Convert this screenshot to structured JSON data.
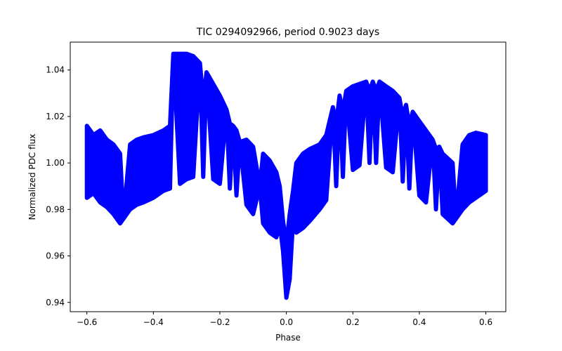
{
  "chart_data": {
    "type": "scatter",
    "title": "TIC 0294092966, period 0.9023 days",
    "xlabel": "Phase",
    "ylabel": "Normalized PDC flux",
    "xlim": [
      -0.65,
      0.66
    ],
    "ylim": [
      0.936,
      1.052
    ],
    "xticks": [
      -0.6,
      -0.4,
      -0.2,
      0.0,
      0.2,
      0.4,
      0.6
    ],
    "xtick_labels": [
      "−0.6",
      "−0.4",
      "−0.2",
      "0.0",
      "0.2",
      "0.4",
      "0.6"
    ],
    "yticks": [
      0.94,
      0.96,
      0.98,
      1.0,
      1.02,
      1.04
    ],
    "ytick_labels": [
      "0.94",
      "0.96",
      "0.98",
      "1.00",
      "1.02",
      "1.04"
    ],
    "marker_color": "#0000ff",
    "grid": false,
    "series": [
      {
        "points": [
          [
            -0.6,
            1.0
          ],
          [
            -0.6,
            1.012
          ],
          [
            -0.6,
            0.988
          ],
          [
            -0.6,
            1.016
          ],
          [
            -0.6,
            0.985
          ],
          [
            -0.58,
            1.001
          ],
          [
            -0.58,
            1.012
          ],
          [
            -0.58,
            0.987
          ],
          [
            -0.56,
            1.0
          ],
          [
            -0.56,
            1.014
          ],
          [
            -0.56,
            0.983
          ],
          [
            -0.54,
            0.999
          ],
          [
            -0.54,
            1.01
          ],
          [
            -0.54,
            0.981
          ],
          [
            -0.52,
            0.998
          ],
          [
            -0.52,
            1.008
          ],
          [
            -0.52,
            0.978
          ],
          [
            -0.5,
            0.995
          ],
          [
            -0.5,
            1.004
          ],
          [
            -0.5,
            0.974
          ],
          [
            -0.49,
            0.976
          ],
          [
            -0.47,
            0.997
          ],
          [
            -0.47,
            1.008
          ],
          [
            -0.47,
            0.98
          ],
          [
            -0.45,
            1.0
          ],
          [
            -0.45,
            1.01
          ],
          [
            -0.45,
            0.982
          ],
          [
            -0.43,
            1.001
          ],
          [
            -0.43,
            1.011
          ],
          [
            -0.43,
            0.983
          ],
          [
            -0.4,
            1.002
          ],
          [
            -0.4,
            1.012
          ],
          [
            -0.4,
            0.985
          ],
          [
            -0.37,
            1.004
          ],
          [
            -0.37,
            1.014
          ],
          [
            -0.37,
            0.988
          ],
          [
            -0.35,
            1.006
          ],
          [
            -0.35,
            1.016
          ],
          [
            -0.35,
            0.989
          ],
          [
            -0.32,
            1.008
          ],
          [
            -0.32,
            1.019
          ],
          [
            -0.32,
            0.991
          ],
          [
            -0.3,
            1.01
          ],
          [
            -0.3,
            1.021
          ],
          [
            -0.3,
            0.993
          ],
          [
            -0.28,
            1.011
          ],
          [
            -0.28,
            1.024
          ],
          [
            -0.28,
            0.994
          ],
          [
            -0.25,
            1.012
          ],
          [
            -0.25,
            1.027
          ],
          [
            -0.25,
            0.994
          ],
          [
            -0.22,
            1.011
          ],
          [
            -0.22,
            1.024
          ],
          [
            -0.22,
            0.993
          ],
          [
            -0.2,
            1.01
          ],
          [
            -0.2,
            1.021
          ],
          [
            -0.2,
            0.991
          ],
          [
            -0.17,
            1.007
          ],
          [
            -0.17,
            1.017
          ],
          [
            -0.17,
            0.989
          ],
          [
            -0.15,
            1.005
          ],
          [
            -0.15,
            1.014
          ],
          [
            -0.15,
            0.986
          ],
          [
            -0.12,
            1.002
          ],
          [
            -0.12,
            1.01
          ],
          [
            -0.12,
            0.982
          ],
          [
            -0.1,
            0.999
          ],
          [
            -0.1,
            1.007
          ],
          [
            -0.1,
            0.978
          ],
          [
            -0.07,
            0.996
          ],
          [
            -0.07,
            1.004
          ],
          [
            -0.07,
            0.974
          ],
          [
            -0.05,
            0.993
          ],
          [
            -0.05,
            1.001
          ],
          [
            -0.05,
            0.97
          ],
          [
            -0.03,
            0.99
          ],
          [
            -0.03,
            0.996
          ],
          [
            -0.03,
            0.968
          ],
          [
            -0.02,
            0.985
          ],
          [
            -0.02,
            0.99
          ],
          [
            -0.02,
            0.974
          ],
          [
            -0.01,
            0.975
          ],
          [
            -0.01,
            0.962
          ],
          [
            -0.005,
            0.952
          ],
          [
            0.0,
            0.946
          ],
          [
            0.0,
            0.942
          ],
          [
            0.0,
            0.965
          ],
          [
            0.005,
            0.95
          ],
          [
            0.01,
            0.96
          ],
          [
            0.01,
            0.978
          ],
          [
            0.02,
            0.988
          ],
          [
            0.02,
            0.975
          ],
          [
            0.03,
            0.992
          ],
          [
            0.03,
            1.0
          ],
          [
            0.03,
            0.97
          ],
          [
            0.05,
            0.995
          ],
          [
            0.05,
            1.004
          ],
          [
            0.05,
            0.972
          ],
          [
            0.07,
            0.997
          ],
          [
            0.07,
            1.006
          ],
          [
            0.07,
            0.975
          ],
          [
            0.1,
            1.0
          ],
          [
            0.1,
            1.008
          ],
          [
            0.1,
            0.98
          ],
          [
            0.12,
            1.003
          ],
          [
            0.12,
            1.012
          ],
          [
            0.12,
            0.984
          ],
          [
            0.15,
            1.007
          ],
          [
            0.15,
            1.017
          ],
          [
            0.15,
            0.99
          ],
          [
            0.17,
            1.01
          ],
          [
            0.17,
            1.022
          ],
          [
            0.17,
            0.994
          ],
          [
            0.2,
            1.013
          ],
          [
            0.2,
            1.026
          ],
          [
            0.2,
            0.997
          ],
          [
            0.22,
            1.015
          ],
          [
            0.22,
            1.029
          ],
          [
            0.22,
            0.999
          ],
          [
            0.25,
            1.016
          ],
          [
            0.25,
            1.031
          ],
          [
            0.25,
            1.0
          ],
          [
            0.27,
            1.017
          ],
          [
            0.27,
            1.031
          ],
          [
            0.27,
            1.0
          ],
          [
            0.3,
            1.016
          ],
          [
            0.3,
            1.028
          ],
          [
            0.3,
            0.998
          ],
          [
            0.32,
            1.014
          ],
          [
            0.32,
            1.025
          ],
          [
            0.32,
            0.996
          ],
          [
            0.35,
            1.011
          ],
          [
            0.35,
            1.02
          ],
          [
            0.35,
            0.992
          ],
          [
            0.37,
            1.008
          ],
          [
            0.37,
            1.016
          ],
          [
            0.37,
            0.989
          ],
          [
            0.4,
            1.005
          ],
          [
            0.4,
            1.013
          ],
          [
            0.4,
            0.986
          ],
          [
            0.42,
            1.002
          ],
          [
            0.42,
            1.01
          ],
          [
            0.42,
            0.983
          ],
          [
            0.45,
            0.999
          ],
          [
            0.45,
            1.006
          ],
          [
            0.45,
            0.98
          ],
          [
            0.47,
            0.997
          ],
          [
            0.47,
            1.004
          ],
          [
            0.47,
            0.978
          ],
          [
            0.5,
            0.994
          ],
          [
            0.5,
            1.0
          ],
          [
            0.5,
            0.974
          ],
          [
            0.51,
            0.976
          ],
          [
            0.53,
            0.998
          ],
          [
            0.53,
            1.008
          ],
          [
            0.53,
            0.98
          ],
          [
            0.55,
            1.0
          ],
          [
            0.55,
            1.012
          ],
          [
            0.55,
            0.983
          ],
          [
            0.57,
            1.001
          ],
          [
            0.57,
            1.013
          ],
          [
            0.57,
            0.985
          ],
          [
            0.6,
            1.0
          ],
          [
            0.6,
            1.012
          ],
          [
            0.6,
            0.988
          ],
          [
            -0.34,
            1.047
          ],
          [
            -0.32,
            1.047
          ],
          [
            -0.3,
            1.047
          ],
          [
            -0.28,
            1.046
          ],
          [
            -0.26,
            1.043
          ],
          [
            -0.24,
            1.039
          ],
          [
            -0.22,
            1.034
          ],
          [
            -0.2,
            1.029
          ],
          [
            -0.18,
            1.023
          ],
          [
            -0.16,
            1.016
          ],
          [
            -0.14,
            1.009
          ],
          [
            -0.12,
            1.003
          ],
          [
            -0.1,
            0.996
          ],
          [
            -0.08,
            0.99
          ],
          [
            0.14,
            1.024
          ],
          [
            0.16,
            1.029
          ],
          [
            0.18,
            1.031
          ],
          [
            0.2,
            1.033
          ],
          [
            0.22,
            1.034
          ],
          [
            0.24,
            1.035
          ],
          [
            0.26,
            1.035
          ],
          [
            0.28,
            1.035
          ],
          [
            0.3,
            1.033
          ],
          [
            0.32,
            1.031
          ],
          [
            0.34,
            1.028
          ],
          [
            0.36,
            1.025
          ],
          [
            0.38,
            1.022
          ],
          [
            0.4,
            1.018
          ],
          [
            0.42,
            1.014
          ],
          [
            0.44,
            1.01
          ],
          [
            0.46,
            1.007
          ]
        ]
      }
    ]
  }
}
